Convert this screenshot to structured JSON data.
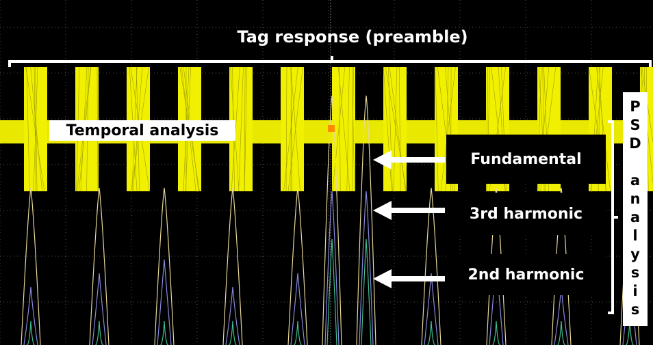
{
  "header": {
    "title": "Tag response (preamble)"
  },
  "labels": {
    "temporal": "Temporal analysis",
    "fundamental": "Fundamental",
    "third": "3rd harmonic",
    "second": "2nd harmonic",
    "psd": "PSD analysis"
  }
}
